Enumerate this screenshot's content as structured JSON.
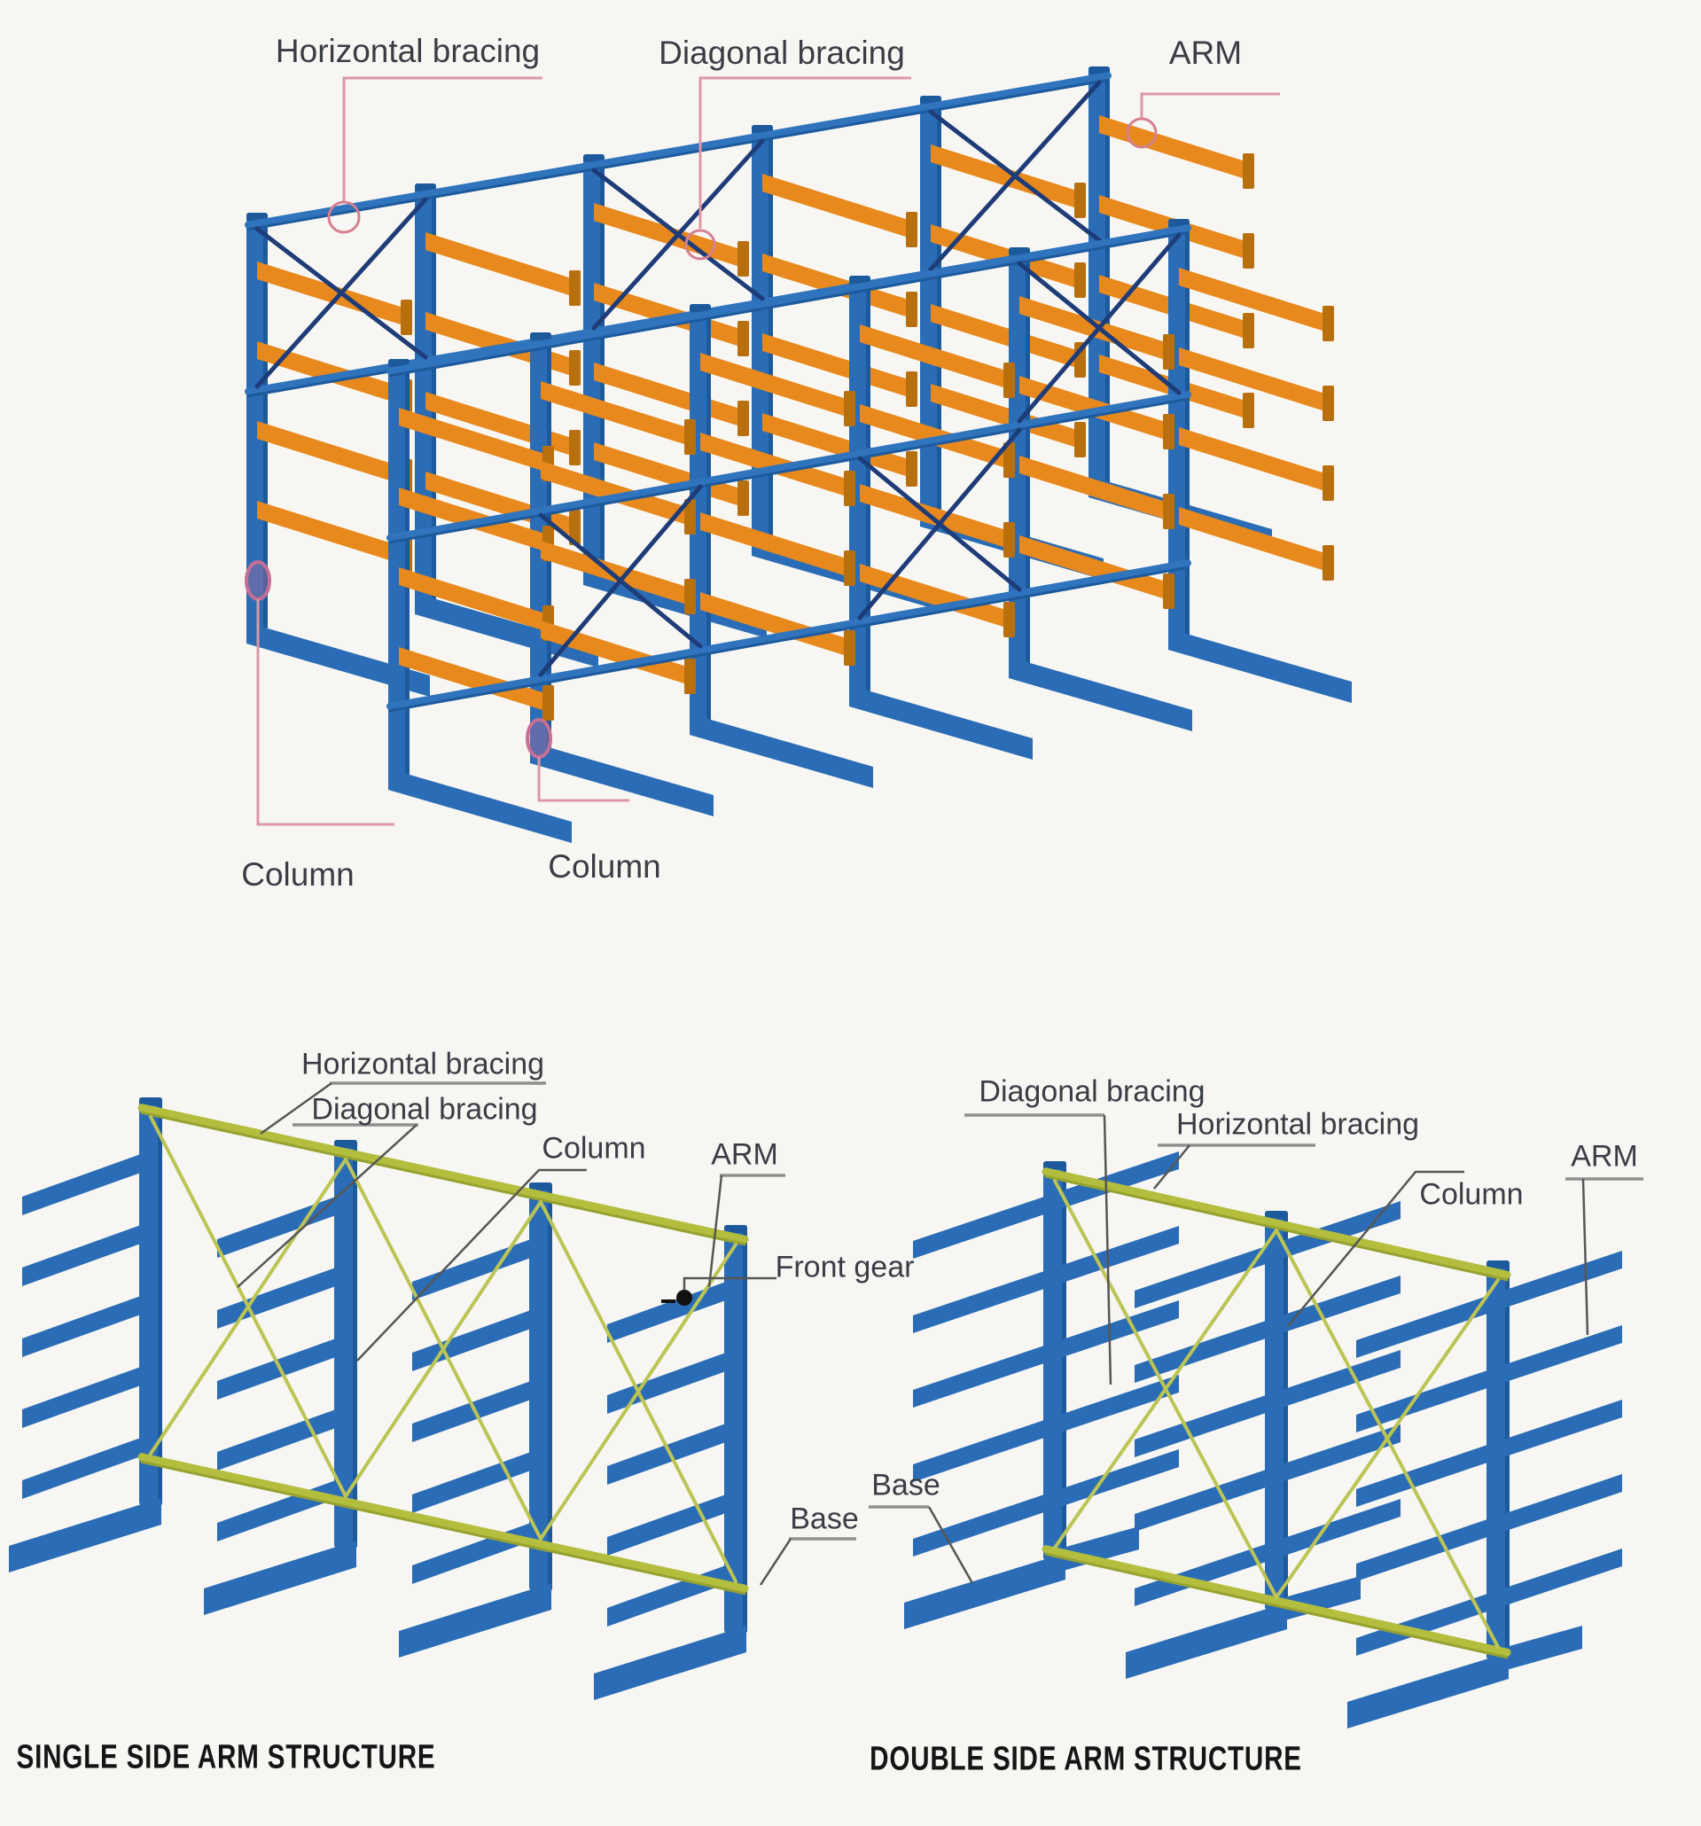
{
  "top_diagram": {
    "labels": {
      "horizontal_bracing": "Horizontal bracing",
      "diagonal_bracing": "Diagonal bracing",
      "arm": "ARM",
      "column_left": "Column",
      "column_right": "Column"
    }
  },
  "single_diagram": {
    "title": "SINGLE SIDE ARM STRUCTURE",
    "labels": {
      "horizontal_bracing": "Horizontal bracing",
      "diagonal_bracing": "Diagonal bracing",
      "column": "Column",
      "arm": "ARM",
      "front_gear": "Front gear",
      "base": "Base"
    }
  },
  "double_diagram": {
    "title": "DOUBLE SIDE ARM STRUCTURE",
    "labels": {
      "diagonal_bracing": "Diagonal bracing",
      "horizontal_bracing": "Horizontal bracing",
      "column": "Column",
      "arm": "ARM",
      "base": "Base"
    }
  },
  "colors": {
    "background": "#f7f6f3",
    "column_blue": "#2a6cb5",
    "column_blue_dark": "#1d5a9c",
    "rail_blue": "#2f74bd",
    "arm_orange": "#e8891d",
    "arm_orange_dark": "#b8700f",
    "bracing_olive": "#b3bd3e",
    "bracing_olive_dark": "#96a230",
    "xbrace_olive": "#bcc454",
    "diagonal_navy": "#1e3c78",
    "callout_pink": "#dc98a4",
    "callout_circle_pink": "#d4808f",
    "callout_magenta": "#c46f96",
    "callout_gray_line": "#8f8f8f",
    "callout_gray_pointer": "#565656",
    "front_gear_black": "#111111"
  }
}
